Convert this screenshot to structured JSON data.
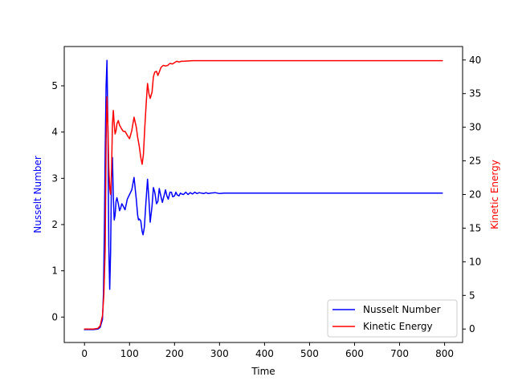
{
  "chart_data": {
    "type": "line",
    "title": "",
    "xlabel": "Time",
    "xlim": [
      -45,
      840
    ],
    "xticks": [
      0,
      100,
      200,
      300,
      400,
      500,
      600,
      700,
      800
    ],
    "grid": false,
    "legend_position": "lower-right",
    "y_left": {
      "label": "Nusselt Number",
      "color": "#0000ff",
      "lim": [
        -0.55,
        5.85
      ],
      "ticks": [
        0,
        1,
        2,
        3,
        4,
        5
      ]
    },
    "y_right": {
      "label": "Kinetic Energy",
      "color": "#ff0000",
      "lim": [
        -2,
        42
      ],
      "ticks": [
        0,
        5,
        10,
        15,
        20,
        25,
        30,
        35,
        40
      ]
    },
    "series": [
      {
        "name": "Nusselt Number",
        "axis": "left",
        "color": "#0000ff",
        "x": [
          0,
          10,
          20,
          30,
          35,
          40,
          42,
          44,
          46,
          48,
          50,
          52,
          54,
          56,
          58,
          60,
          62,
          64,
          66,
          68,
          70,
          72,
          75,
          78,
          80,
          83,
          86,
          90,
          95,
          100,
          105,
          110,
          115,
          118,
          120,
          122,
          125,
          128,
          130,
          133,
          136,
          140,
          143,
          146,
          150,
          153,
          156,
          160,
          163,
          166,
          170,
          173,
          176,
          180,
          183,
          186,
          190,
          193,
          196,
          200,
          203,
          206,
          210,
          213,
          216,
          220,
          225,
          230,
          235,
          240,
          245,
          250,
          255,
          260,
          265,
          270,
          275,
          280,
          290,
          300,
          310,
          320,
          340,
          360,
          380,
          400,
          450,
          500,
          550,
          600,
          650,
          700,
          750,
          795
        ],
        "values": [
          -0.27,
          -0.27,
          -0.27,
          -0.26,
          -0.22,
          -0.05,
          0.5,
          1.8,
          3.6,
          5.0,
          5.55,
          4.0,
          1.5,
          0.6,
          1.4,
          3.0,
          3.45,
          2.6,
          2.1,
          2.2,
          2.5,
          2.58,
          2.45,
          2.3,
          2.35,
          2.45,
          2.4,
          2.32,
          2.55,
          2.65,
          2.75,
          3.02,
          2.55,
          2.2,
          2.1,
          2.12,
          2.08,
          1.85,
          1.78,
          1.95,
          2.4,
          2.98,
          2.55,
          2.05,
          2.4,
          2.8,
          2.7,
          2.45,
          2.5,
          2.78,
          2.6,
          2.48,
          2.6,
          2.75,
          2.62,
          2.55,
          2.7,
          2.7,
          2.6,
          2.62,
          2.7,
          2.64,
          2.62,
          2.68,
          2.66,
          2.65,
          2.7,
          2.65,
          2.69,
          2.66,
          2.7,
          2.67,
          2.69,
          2.68,
          2.67,
          2.69,
          2.67,
          2.68,
          2.69,
          2.67,
          2.68,
          2.68,
          2.68,
          2.68,
          2.68,
          2.68,
          2.68,
          2.68,
          2.68,
          2.68,
          2.68,
          2.68,
          2.68,
          2.68
        ]
      },
      {
        "name": "Kinetic Energy",
        "axis": "right",
        "color": "#ff0000",
        "x": [
          0,
          10,
          20,
          30,
          35,
          40,
          43,
          46,
          48,
          50,
          52,
          54,
          56,
          58,
          60,
          62,
          64,
          66,
          68,
          70,
          72,
          75,
          78,
          82,
          86,
          90,
          95,
          100,
          105,
          110,
          115,
          118,
          120,
          122,
          125,
          128,
          131,
          134,
          137,
          140,
          143,
          146,
          150,
          153,
          156,
          160,
          163,
          166,
          170,
          175,
          180,
          185,
          190,
          195,
          200,
          205,
          210,
          215,
          220,
          230,
          240,
          250,
          260,
          270,
          280,
          300,
          320,
          350,
          400,
          450,
          500,
          600,
          700,
          795
        ],
        "values": [
          0,
          0,
          0,
          0.1,
          0.5,
          2,
          5,
          12,
          28,
          34.5,
          30,
          24,
          21,
          20,
          23,
          30.5,
          32.5,
          30.5,
          29,
          29.5,
          30.5,
          31,
          30.3,
          29.8,
          29.4,
          29.4,
          28.8,
          28.3,
          29.5,
          31.5,
          30,
          28.5,
          27.8,
          27,
          25.5,
          24.5,
          26,
          30,
          33.5,
          36.5,
          35,
          34.3,
          35.2,
          37.5,
          38.2,
          38.3,
          37.7,
          38.2,
          38.9,
          39.2,
          39.1,
          39.2,
          39.5,
          39.4,
          39.6,
          39.8,
          39.7,
          39.8,
          39.8,
          39.85,
          39.9,
          39.9,
          39.9,
          39.9,
          39.9,
          39.9,
          39.9,
          39.9,
          39.9,
          39.9,
          39.9,
          39.9,
          39.9,
          39.9
        ]
      }
    ]
  }
}
